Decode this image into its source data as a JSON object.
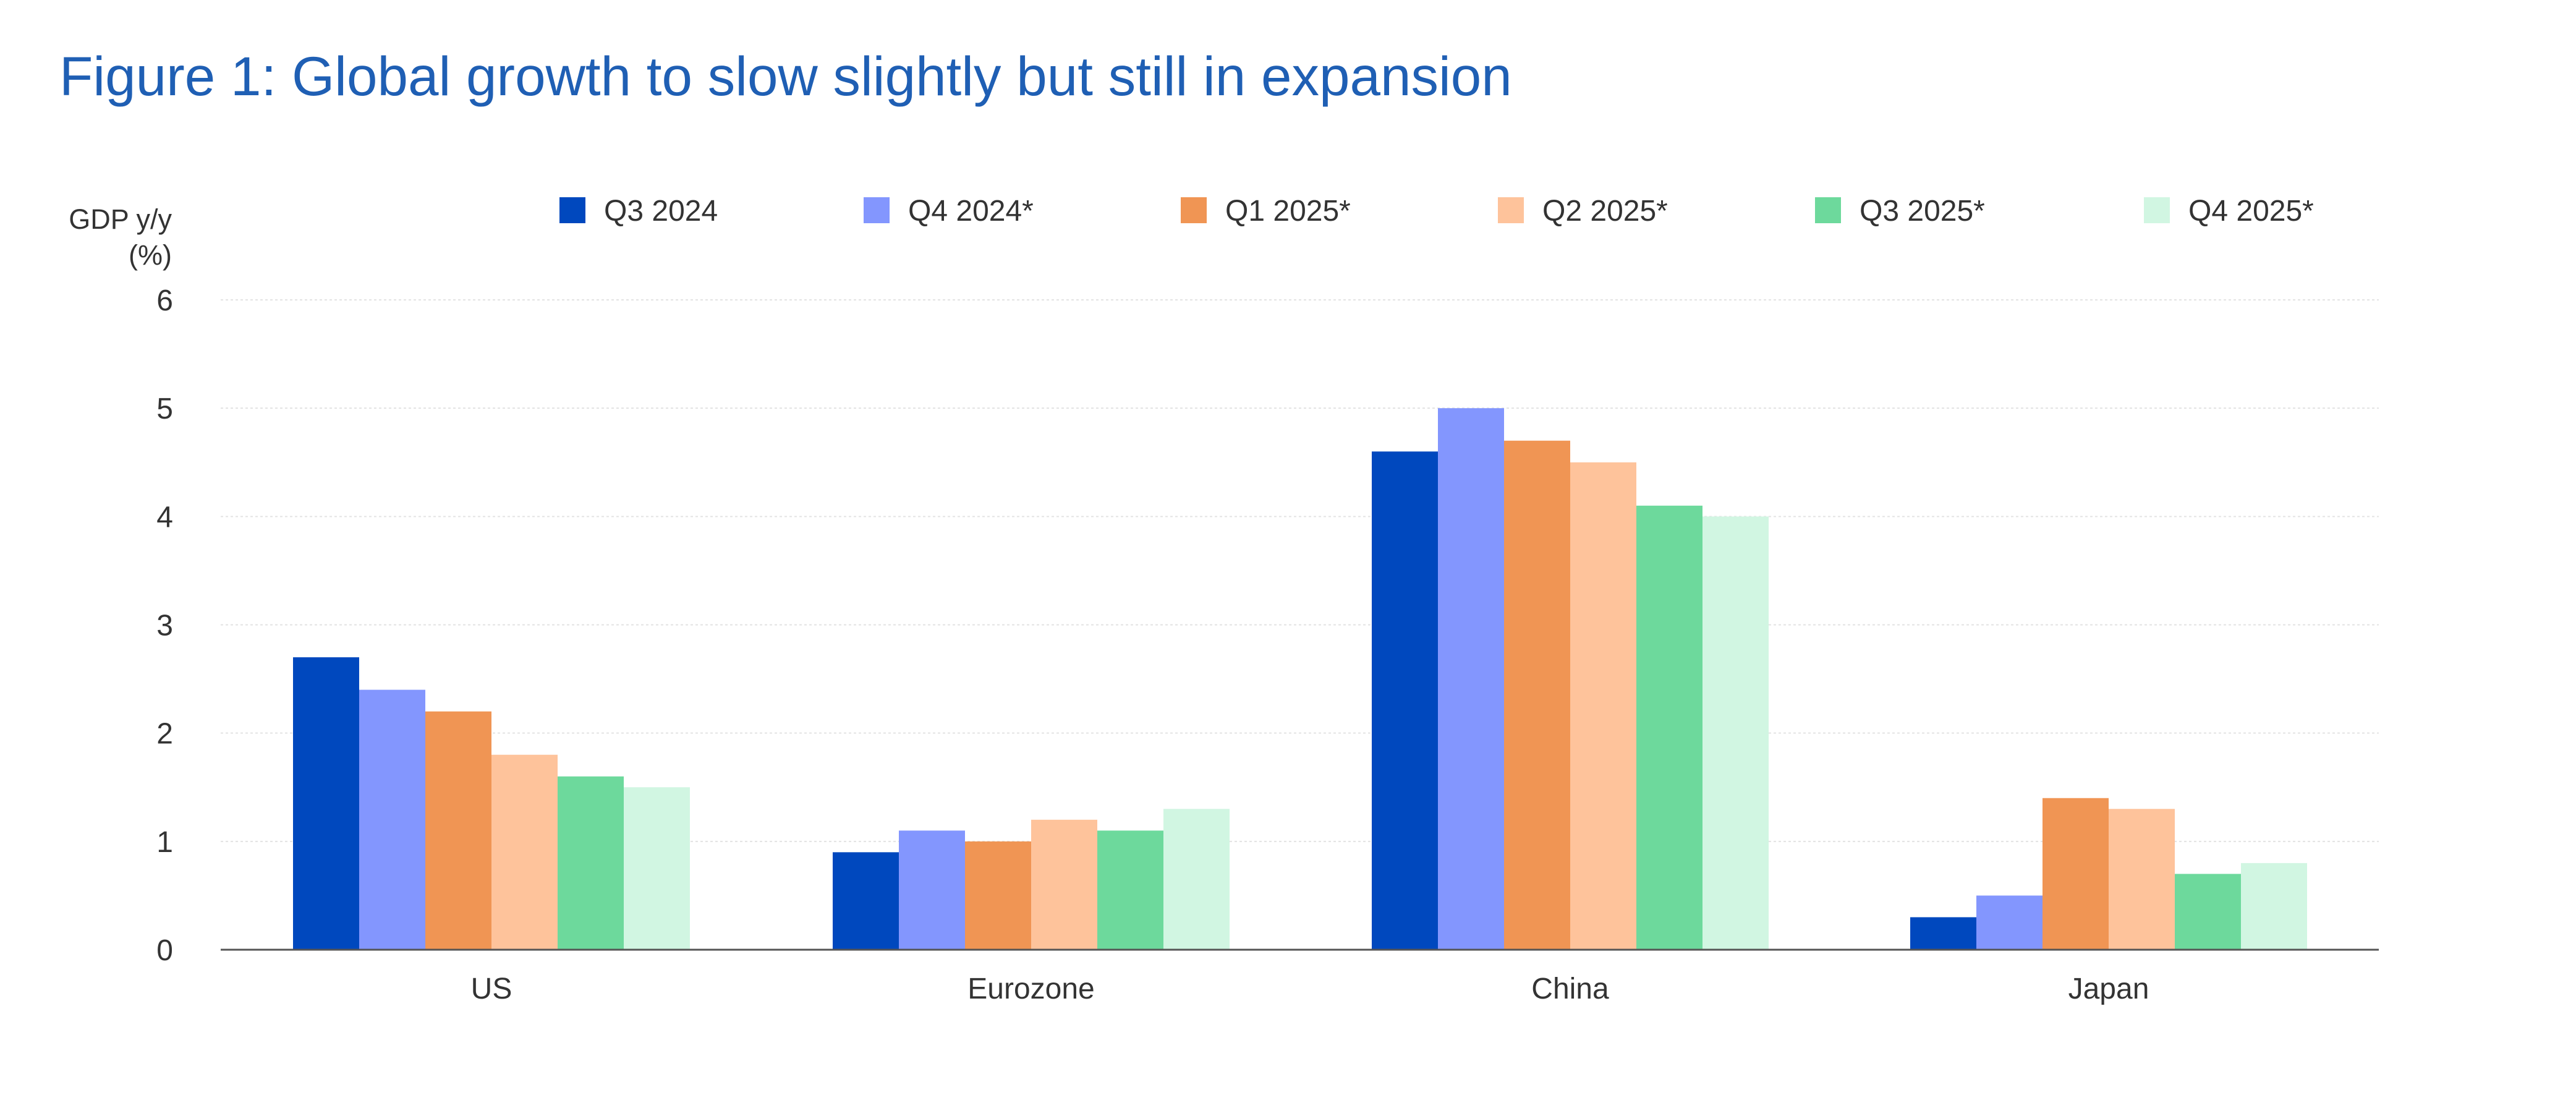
{
  "title": "Figure 1: Global growth to slow slightly but still in expansion",
  "colors": {
    "title": "#1f5fb4",
    "text": "#333333",
    "grid": "#e3e3e3",
    "axis": "#555555"
  },
  "chart_data": {
    "type": "bar",
    "title": "Figure 1: Global growth to slow slightly but still in expansion",
    "xlabel": "",
    "ylabel_lines": [
      "GDP y/y",
      "(%)"
    ],
    "categories": [
      "US",
      "Eurozone",
      "China",
      "Japan"
    ],
    "ylim": [
      0,
      6
    ],
    "yticks": [
      0,
      1,
      2,
      3,
      4,
      5,
      6
    ],
    "grid": true,
    "legend_position": "top",
    "series": [
      {
        "name": "Q3 2024",
        "color": "#0048be",
        "values": [
          2.7,
          0.9,
          4.6,
          0.3
        ]
      },
      {
        "name": "Q4 2024*",
        "color": "#8396fe",
        "values": [
          2.4,
          1.1,
          5.0,
          0.5
        ]
      },
      {
        "name": "Q1 2025*",
        "color": "#f09554",
        "values": [
          2.2,
          1.0,
          4.7,
          1.4
        ]
      },
      {
        "name": "Q2 2025*",
        "color": "#fec39b",
        "values": [
          1.8,
          1.2,
          4.5,
          1.3
        ]
      },
      {
        "name": "Q3 2025*",
        "color": "#6dd99c",
        "values": [
          1.6,
          1.1,
          4.1,
          0.7
        ]
      },
      {
        "name": "Q4 2025*",
        "color": "#d1f6e2",
        "values": [
          1.5,
          1.3,
          4.0,
          0.8
        ]
      }
    ]
  }
}
